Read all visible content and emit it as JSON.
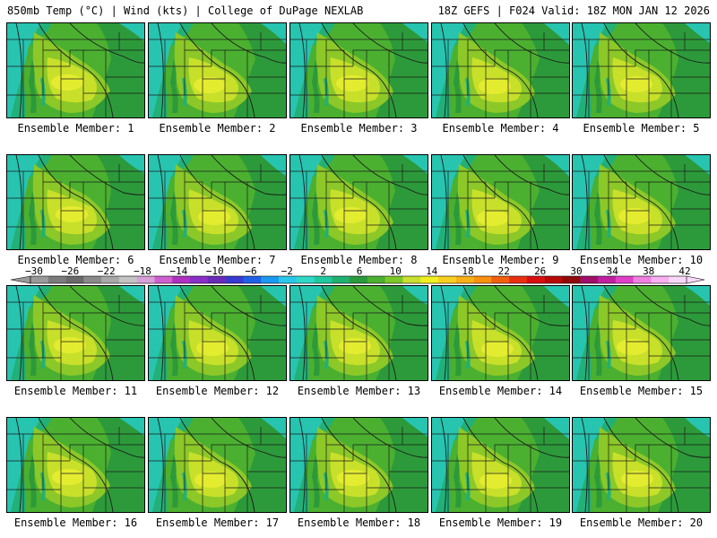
{
  "header": {
    "left": "850mb Temp (°C) | Wind (kts) | College of DuPage NEXLAB",
    "right": "18Z GEFS | F024 Valid: 18Z MON JAN 12 2026"
  },
  "member_label_prefix": "Ensemble Member: ",
  "members": [
    {
      "label": "Ensemble Member: 1"
    },
    {
      "label": "Ensemble Member: 2"
    },
    {
      "label": "Ensemble Member: 3"
    },
    {
      "label": "Ensemble Member: 4"
    },
    {
      "label": "Ensemble Member: 5"
    },
    {
      "label": "Ensemble Member: 6"
    },
    {
      "label": "Ensemble Member: 7"
    },
    {
      "label": "Ensemble Member: 8"
    },
    {
      "label": "Ensemble Member: 9"
    },
    {
      "label": "Ensemble Member: 10"
    },
    {
      "label": "Ensemble Member: 11"
    },
    {
      "label": "Ensemble Member: 12"
    },
    {
      "label": "Ensemble Member: 13"
    },
    {
      "label": "Ensemble Member: 14"
    },
    {
      "label": "Ensemble Member: 15"
    },
    {
      "label": "Ensemble Member: 16"
    },
    {
      "label": "Ensemble Member: 17"
    },
    {
      "label": "Ensemble Member: 18"
    },
    {
      "label": "Ensemble Member: 19"
    },
    {
      "label": "Ensemble Member: 20"
    }
  ],
  "legend": {
    "ticks": [
      "−30",
      "−26",
      "−22",
      "−18",
      "−14",
      "−10",
      "−6",
      "−2",
      "2",
      "6",
      "10",
      "14",
      "18",
      "22",
      "26",
      "30",
      "34",
      "38",
      "42"
    ],
    "colors": [
      "#9a9a9a",
      "#7c7c7c",
      "#6a6a6a",
      "#8a8a8a",
      "#a8a8a8",
      "#c4c4c4",
      "#d8a0d8",
      "#d060d0",
      "#b030c0",
      "#8a2ec8",
      "#6a2ab8",
      "#3a3ad0",
      "#2060e8",
      "#1a9af0",
      "#2ac8e8",
      "#30d8c8",
      "#20c8a0",
      "#20b070",
      "#2a9a3c",
      "#4cb030",
      "#7cc828",
      "#c8e030",
      "#f0f020",
      "#f8d020",
      "#f8b018",
      "#f89010",
      "#f06010",
      "#e83010",
      "#d81010",
      "#b80808",
      "#900a0a",
      "#a0106a",
      "#c020a0",
      "#e040c8",
      "#f080e0",
      "#f8b0f0",
      "#f8d8f8"
    ]
  },
  "map_colors": {
    "cold_teal": "#27c4b0",
    "teal_green": "#22b078",
    "dark_green": "#2c9a3a",
    "green": "#4bb030",
    "light_green": "#8cc828",
    "yellow_green": "#c8e02a",
    "yellow": "#e4ec30",
    "boundary": "#1a1a1a"
  }
}
